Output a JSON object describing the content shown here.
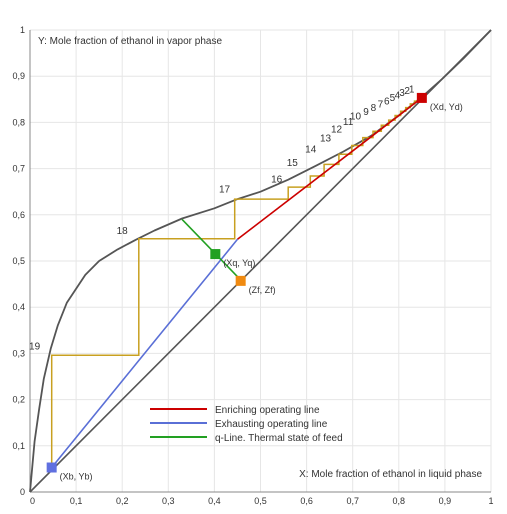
{
  "chart_data": {
    "type": "line",
    "xlabel": "X: Mole fraction of ethanol in liquid phase",
    "ylabel": "Y: Mole fraction of ethanol in vapor phase",
    "xlim": [
      0,
      1
    ],
    "ylim": [
      0,
      1
    ],
    "grid": true,
    "legend_position": "bottom-center",
    "x_ticks": [
      {
        "value": 0,
        "label": "0"
      },
      {
        "value": 0.1,
        "label": "0,1"
      },
      {
        "value": 0.2,
        "label": "0,2"
      },
      {
        "value": 0.3,
        "label": "0,3"
      },
      {
        "value": 0.4,
        "label": "0,4"
      },
      {
        "value": 0.5,
        "label": "0,5"
      },
      {
        "value": 0.6,
        "label": "0,6"
      },
      {
        "value": 0.7,
        "label": "0,7"
      },
      {
        "value": 0.8,
        "label": "0,8"
      },
      {
        "value": 0.9,
        "label": "0,9"
      },
      {
        "value": 1,
        "label": "1"
      }
    ],
    "y_ticks": [
      {
        "value": 0,
        "label": "0"
      },
      {
        "value": 0.1,
        "label": "0,1"
      },
      {
        "value": 0.2,
        "label": "0,2"
      },
      {
        "value": 0.3,
        "label": "0,3"
      },
      {
        "value": 0.4,
        "label": "0,4"
      },
      {
        "value": 0.5,
        "label": "0,5"
      },
      {
        "value": 0.6,
        "label": "0,6"
      },
      {
        "value": 0.7,
        "label": "0,7"
      },
      {
        "value": 0.8,
        "label": "0,8"
      },
      {
        "value": 0.9,
        "label": "0,9"
      },
      {
        "value": 1,
        "label": "1"
      }
    ],
    "equilibrium_curve": {
      "color": "#555555",
      "x": [
        0,
        0.01,
        0.02,
        0.03,
        0.045,
        0.06,
        0.08,
        0.1,
        0.12,
        0.15,
        0.19,
        0.23,
        0.27,
        0.33,
        0.4,
        0.45,
        0.5,
        0.56,
        0.62,
        0.68,
        0.74,
        0.8,
        0.85,
        0.894,
        0.94,
        1.0
      ],
      "y": [
        0,
        0.11,
        0.18,
        0.245,
        0.31,
        0.36,
        0.41,
        0.44,
        0.47,
        0.5,
        0.525,
        0.546,
        0.566,
        0.592,
        0.614,
        0.634,
        0.65,
        0.676,
        0.706,
        0.737,
        0.771,
        0.815,
        0.855,
        0.894,
        0.938,
        1.0
      ]
    },
    "diagonal": {
      "color": "#555555",
      "x": [
        0,
        1
      ],
      "y": [
        0,
        1
      ]
    },
    "series": [
      {
        "name": "Enriching operating line",
        "color": "#cc0000",
        "x": [
          0.45,
          0.85
        ],
        "y": [
          0.547,
          0.853
        ]
      },
      {
        "name": "Exhausting operating line",
        "color": "#5a6fd6",
        "x": [
          0.047,
          0.45
        ],
        "y": [
          0.053,
          0.547
        ]
      },
      {
        "name": "q-Line. Thermal state of feed",
        "color": "#22a022",
        "x": [
          0.33,
          0.45
        ],
        "y": [
          0.59,
          0.466
        ]
      }
    ],
    "stage_steps_color": "#c8a020",
    "stages": [
      {
        "x": 0.84,
        "y": 0.845,
        "xd": 0.845
      },
      {
        "x": 0.83,
        "y": 0.838,
        "xd": 0.832
      },
      {
        "x": 0.82,
        "y": 0.83,
        "xd": 0.822
      },
      {
        "x": 0.81,
        "y": 0.822,
        "xd": 0.811
      },
      {
        "x": 0.795,
        "y": 0.812,
        "xd": 0.798
      },
      {
        "x": 0.78,
        "y": 0.8,
        "xd": 0.784
      },
      {
        "x": 0.765,
        "y": 0.79,
        "xd": 0.768
      },
      {
        "x": 0.745,
        "y": 0.778,
        "xd": 0.75
      },
      {
        "x": 0.725,
        "y": 0.765,
        "xd": 0.73
      },
      {
        "x": 0.705,
        "y": 0.752,
        "xd": 0.708
      },
      {
        "x": 0.68,
        "y": 0.74,
        "xd": 0.68
      },
      {
        "x": 0.655,
        "y": 0.724,
        "xd": 0.65
      },
      {
        "x": 0.625,
        "y": 0.708,
        "xd": 0.618
      },
      {
        "x": 0.6,
        "y": 0.68,
        "xd": 0.622
      },
      {
        "x": 0.557,
        "y": 0.68,
        "xd": 0.565
      },
      {
        "x": 0.557,
        "y": 0.635,
        "xd": 0.45
      },
      {
        "x": 0.443,
        "y": 0.635,
        "xd": 0.443
      },
      {
        "x": 0.443,
        "y": 0.547,
        "xd": 0.237
      },
      {
        "x": 0.237,
        "y": 0.547,
        "xd": 0.237
      },
      {
        "x": 0.237,
        "y": 0.296,
        "xd": 0.047
      },
      {
        "x": 0.047,
        "y": 0.296,
        "xd": 0.047
      },
      {
        "x": 0.047,
        "y": 0.053,
        "xd": 0.047
      }
    ],
    "stage_path": {
      "x": [
        0.85,
        0.842,
        0.842,
        0.834,
        0.834,
        0.825,
        0.825,
        0.815,
        0.815,
        0.804,
        0.804,
        0.792,
        0.792,
        0.778,
        0.778,
        0.762,
        0.762,
        0.744,
        0.744,
        0.722,
        0.722,
        0.698,
        0.698,
        0.67,
        0.67,
        0.638,
        0.638,
        0.608,
        0.608,
        0.56,
        0.56,
        0.444,
        0.444,
        0.236,
        0.236,
        0.047,
        0.047
      ],
      "y": [
        0.853,
        0.853,
        0.846,
        0.846,
        0.84,
        0.84,
        0.832,
        0.832,
        0.824,
        0.824,
        0.815,
        0.815,
        0.805,
        0.805,
        0.794,
        0.794,
        0.781,
        0.781,
        0.767,
        0.767,
        0.75,
        0.75,
        0.731,
        0.731,
        0.709,
        0.709,
        0.684,
        0.684,
        0.66,
        0.66,
        0.634,
        0.634,
        0.548,
        0.548,
        0.296,
        0.296,
        0.053
      ]
    },
    "stage_labels": [
      {
        "text": "1",
        "x": 0.828,
        "y": 0.865
      },
      {
        "text": "2",
        "x": 0.818,
        "y": 0.862
      },
      {
        "text": "3",
        "x": 0.807,
        "y": 0.857
      },
      {
        "text": "4",
        "x": 0.797,
        "y": 0.852
      },
      {
        "text": "5",
        "x": 0.786,
        "y": 0.846
      },
      {
        "text": "6",
        "x": 0.774,
        "y": 0.839
      },
      {
        "text": "7",
        "x": 0.76,
        "y": 0.832
      },
      {
        "text": "8",
        "x": 0.745,
        "y": 0.825
      },
      {
        "text": "9",
        "x": 0.729,
        "y": 0.816
      },
      {
        "text": "10",
        "x": 0.706,
        "y": 0.806
      },
      {
        "text": "11",
        "x": 0.69,
        "y": 0.794
      },
      {
        "text": "12",
        "x": 0.665,
        "y": 0.778
      },
      {
        "text": "13",
        "x": 0.641,
        "y": 0.759
      },
      {
        "text": "14",
        "x": 0.609,
        "y": 0.735
      },
      {
        "text": "15",
        "x": 0.569,
        "y": 0.706
      },
      {
        "text": "16",
        "x": 0.535,
        "y": 0.67
      },
      {
        "text": "17",
        "x": 0.422,
        "y": 0.648
      },
      {
        "text": "18",
        "x": 0.2,
        "y": 0.558
      },
      {
        "text": "19",
        "x": 0.01,
        "y": 0.308
      }
    ],
    "points": [
      {
        "label": "(Xd, Yd)",
        "x": 0.85,
        "y": 0.853,
        "color": "#cc0000"
      },
      {
        "label": "(Xq, Yq)",
        "x": 0.402,
        "y": 0.515,
        "color": "#22a022"
      },
      {
        "label": "(Zf, Zf)",
        "x": 0.457,
        "y": 0.457,
        "color": "#f08a10"
      },
      {
        "label": "(Xb, Yb)",
        "x": 0.047,
        "y": 0.053,
        "color": "#6070e0"
      }
    ]
  }
}
